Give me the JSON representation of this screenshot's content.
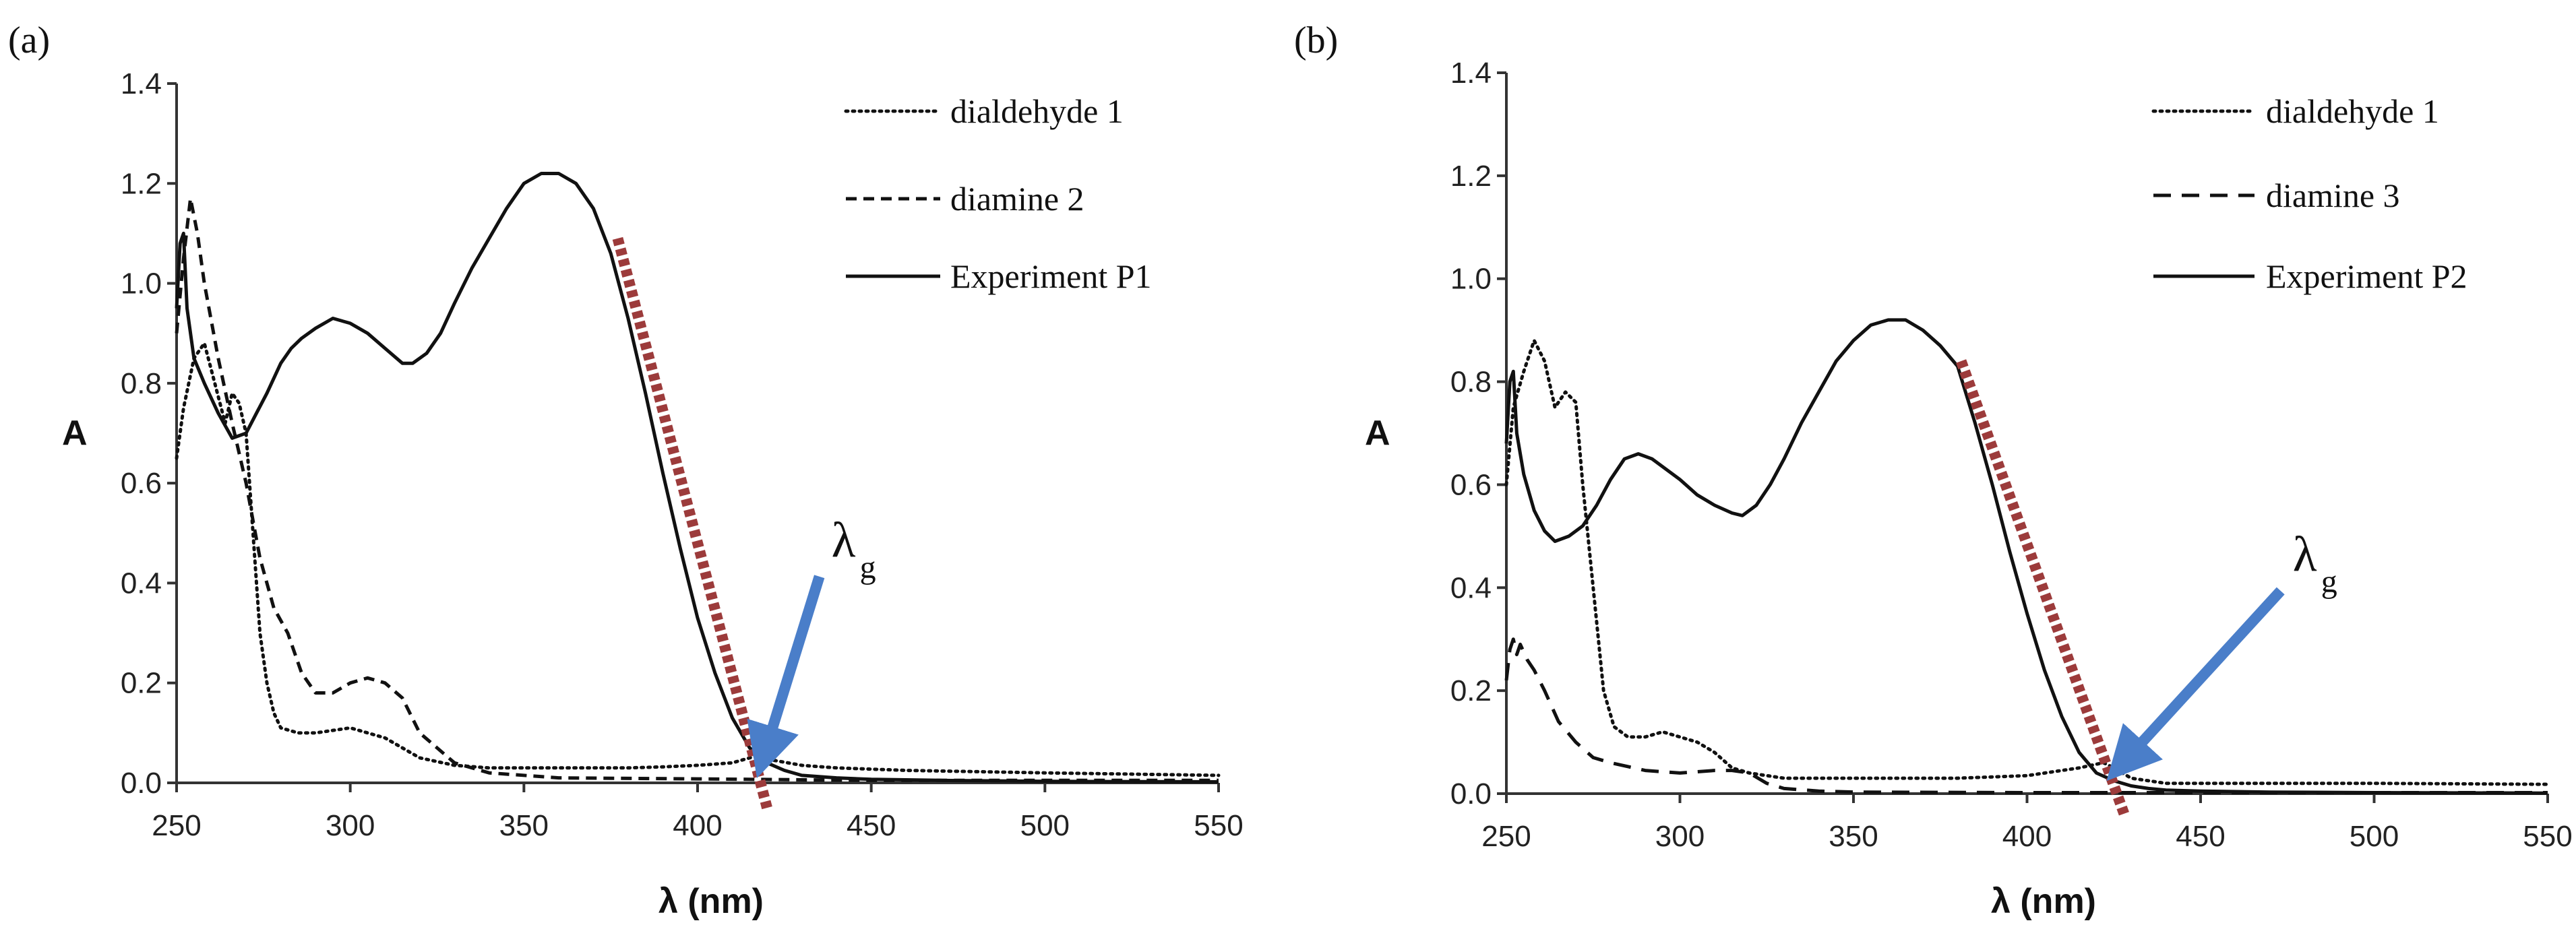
{
  "figure": {
    "colors": {
      "curve": "#111111",
      "tangent": "#9c3b3b",
      "arrow": "#4a7ec9",
      "axis": "#333333"
    }
  },
  "chart_data": [
    {
      "type": "line",
      "panel_label": "(a)",
      "xlabel": "λ (nm)",
      "ylabel": "A",
      "xlim": [
        250,
        550
      ],
      "ylim": [
        0,
        1.4
      ],
      "xticks": [
        "250",
        "300",
        "350",
        "400",
        "450",
        "500",
        "550"
      ],
      "yticks": [
        "0.0",
        "0.2",
        "0.4",
        "0.6",
        "0.8",
        "1.0",
        "1.2",
        "1.4"
      ],
      "grid": false,
      "legend_position": "top-right",
      "series": [
        {
          "name": "dialdehyde 1",
          "style": "dotted",
          "x": [
            250,
            252,
            255,
            258,
            261,
            264,
            266,
            268,
            270,
            272,
            274,
            276,
            278,
            280,
            285,
            290,
            300,
            310,
            315,
            320,
            330,
            340,
            350,
            360,
            370,
            380,
            390,
            400,
            410,
            415,
            418,
            422,
            430,
            440,
            460,
            500,
            550
          ],
          "y": [
            0.65,
            0.75,
            0.85,
            0.88,
            0.8,
            0.72,
            0.78,
            0.76,
            0.7,
            0.5,
            0.3,
            0.2,
            0.14,
            0.11,
            0.1,
            0.1,
            0.11,
            0.09,
            0.07,
            0.05,
            0.035,
            0.03,
            0.03,
            0.03,
            0.03,
            0.03,
            0.032,
            0.035,
            0.04,
            0.05,
            0.055,
            0.045,
            0.035,
            0.03,
            0.025,
            0.02,
            0.015
          ]
        },
        {
          "name": "diamine 2",
          "style": "dashed",
          "x": [
            250,
            252,
            254,
            256,
            258,
            262,
            266,
            270,
            274,
            278,
            282,
            286,
            290,
            295,
            300,
            305,
            310,
            315,
            320,
            330,
            340,
            360,
            400,
            450,
            500,
            550
          ],
          "y": [
            0.9,
            1.05,
            1.17,
            1.1,
            1.0,
            0.85,
            0.72,
            0.6,
            0.45,
            0.35,
            0.3,
            0.22,
            0.18,
            0.18,
            0.2,
            0.21,
            0.2,
            0.17,
            0.1,
            0.04,
            0.02,
            0.01,
            0.008,
            0.005,
            0.005,
            0.005
          ]
        },
        {
          "name": "Experiment P1",
          "style": "solid",
          "x": [
            250,
            251,
            252,
            253,
            255,
            258,
            262,
            266,
            270,
            273,
            276,
            280,
            283,
            286,
            290,
            295,
            300,
            305,
            310,
            315,
            318,
            322,
            326,
            330,
            335,
            340,
            345,
            350,
            355,
            360,
            365,
            370,
            375,
            380,
            385,
            390,
            395,
            400,
            405,
            410,
            415,
            420,
            425,
            430,
            440,
            450,
            470,
            500,
            550
          ],
          "y": [
            0.95,
            1.08,
            1.1,
            0.95,
            0.85,
            0.8,
            0.74,
            0.69,
            0.7,
            0.74,
            0.78,
            0.84,
            0.87,
            0.89,
            0.91,
            0.93,
            0.92,
            0.9,
            0.87,
            0.84,
            0.84,
            0.86,
            0.9,
            0.96,
            1.03,
            1.09,
            1.15,
            1.2,
            1.22,
            1.22,
            1.2,
            1.15,
            1.06,
            0.93,
            0.78,
            0.62,
            0.47,
            0.33,
            0.22,
            0.13,
            0.07,
            0.04,
            0.025,
            0.015,
            0.01,
            0.007,
            0.005,
            0.003,
            0.002
          ]
        }
      ],
      "tangent_line": {
        "from": [
          377,
          1.09
        ],
        "to": [
          420,
          -0.05
        ]
      },
      "annotation": {
        "symbol": "λ",
        "subscript": "g",
        "points_to": [
          418,
          0.03
        ],
        "label_at": [
          437,
          0.44
        ]
      }
    },
    {
      "type": "line",
      "panel_label": "(b)",
      "xlabel": "λ (nm)",
      "ylabel": "A",
      "xlim": [
        250,
        550
      ],
      "ylim": [
        0,
        1.4
      ],
      "xticks": [
        "250",
        "300",
        "350",
        "400",
        "450",
        "500",
        "550"
      ],
      "yticks": [
        "0.0",
        "0.2",
        "0.4",
        "0.6",
        "0.8",
        "1.0",
        "1.2",
        "1.4"
      ],
      "grid": false,
      "legend_position": "top-right",
      "series": [
        {
          "name": "dialdehyde 1",
          "style": "dotted",
          "x": [
            250,
            252,
            255,
            258,
            261,
            264,
            267,
            270,
            272,
            275,
            278,
            281,
            285,
            290,
            295,
            300,
            305,
            310,
            315,
            320,
            330,
            350,
            380,
            400,
            415,
            422,
            425,
            430,
            440,
            460,
            500,
            550
          ],
          "y": [
            0.6,
            0.75,
            0.82,
            0.88,
            0.84,
            0.75,
            0.78,
            0.76,
            0.6,
            0.4,
            0.2,
            0.13,
            0.11,
            0.11,
            0.12,
            0.11,
            0.1,
            0.08,
            0.05,
            0.04,
            0.03,
            0.03,
            0.03,
            0.035,
            0.05,
            0.06,
            0.05,
            0.03,
            0.02,
            0.02,
            0.02,
            0.018
          ]
        },
        {
          "name": "diamine 3",
          "style": "dashed",
          "x": [
            250,
            251,
            252,
            253,
            254,
            256,
            258,
            261,
            265,
            270,
            275,
            280,
            290,
            300,
            310,
            315,
            320,
            325,
            330,
            340,
            350,
            400,
            450,
            500,
            550
          ],
          "y": [
            0.22,
            0.28,
            0.3,
            0.27,
            0.29,
            0.26,
            0.24,
            0.2,
            0.14,
            0.1,
            0.07,
            0.06,
            0.045,
            0.04,
            0.045,
            0.045,
            0.04,
            0.02,
            0.01,
            0.005,
            0.003,
            0.002,
            0.002,
            0.002,
            0.002
          ]
        },
        {
          "name": "Experiment P2",
          "style": "solid",
          "x": [
            250,
            251,
            252,
            253,
            255,
            258,
            261,
            264,
            268,
            272,
            276,
            280,
            284,
            288,
            292,
            296,
            300,
            305,
            310,
            315,
            318,
            322,
            326,
            330,
            335,
            340,
            345,
            350,
            355,
            360,
            365,
            370,
            375,
            380,
            385,
            390,
            395,
            400,
            405,
            410,
            415,
            420,
            425,
            430,
            435,
            440,
            450,
            470,
            500,
            550
          ],
          "y": [
            0.68,
            0.8,
            0.82,
            0.7,
            0.62,
            0.55,
            0.51,
            0.49,
            0.5,
            0.52,
            0.56,
            0.61,
            0.65,
            0.66,
            0.65,
            0.63,
            0.61,
            0.58,
            0.56,
            0.545,
            0.54,
            0.56,
            0.6,
            0.65,
            0.72,
            0.78,
            0.84,
            0.88,
            0.91,
            0.92,
            0.92,
            0.9,
            0.87,
            0.83,
            0.72,
            0.6,
            0.47,
            0.35,
            0.24,
            0.15,
            0.08,
            0.04,
            0.025,
            0.015,
            0.01,
            0.007,
            0.005,
            0.003,
            0.002,
            0.001
          ]
        }
      ],
      "tangent_line": {
        "from": [
          381,
          0.84
        ],
        "to": [
          428,
          -0.04
        ]
      },
      "annotation": {
        "symbol": "λ",
        "subscript": "g",
        "points_to": [
          425,
          0.04
        ],
        "label_at": [
          475,
          0.42
        ]
      }
    }
  ]
}
